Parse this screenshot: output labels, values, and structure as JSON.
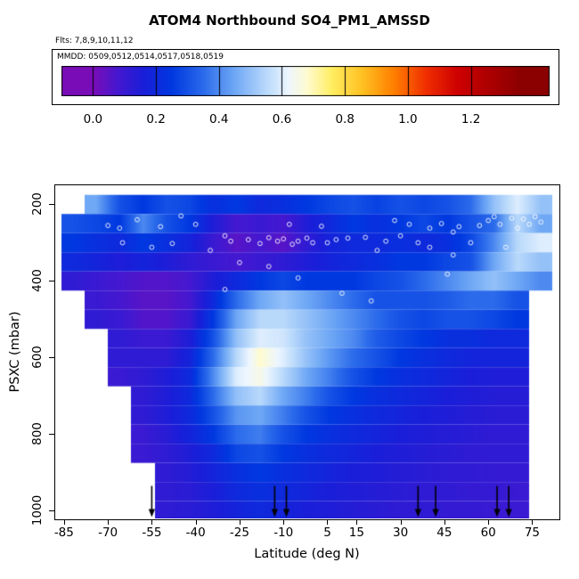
{
  "title": "ATOM4 Northbound SO4_PM1_AMSSD",
  "subtitle": "Flts: 7,8,9,10,11,12",
  "legend": {
    "label": "MMDD: 0509,0512,0514,0517,0518,0519",
    "ticks": [
      0.0,
      0.2,
      0.4,
      0.6,
      0.8,
      1.0,
      1.2
    ],
    "domain": [
      -0.1,
      1.45
    ]
  },
  "axes": {
    "x_label": "Latitude (deg N)",
    "y_label": "PSXC (mbar)",
    "x_ticks": [
      -85,
      -70,
      -55,
      -40,
      -25,
      -10,
      5,
      15,
      30,
      45,
      60,
      75
    ],
    "y_ticks": [
      200,
      400,
      600,
      800,
      1000
    ],
    "x_range": [
      -88,
      84
    ],
    "y_range": [
      150,
      1020
    ]
  },
  "chart_data": {
    "type": "heatmap",
    "title": "ATOM4 Northbound SO4_PM1_AMSSD",
    "xlabel": "Latitude (deg N)",
    "ylabel": "PSXC (mbar)",
    "x": [
      -82,
      -74,
      -66,
      -58,
      -50,
      -42,
      -34,
      -26,
      -18,
      -10,
      -2,
      6,
      14,
      22,
      30,
      38,
      46,
      54,
      62,
      70,
      78
    ],
    "y": [
      200,
      250,
      300,
      350,
      400,
      450,
      500,
      550,
      600,
      650,
      700,
      750,
      800,
      850,
      900,
      950,
      1000
    ],
    "cell_half_height_mbar": 25,
    "cell_half_width_deg": 4,
    "values": [
      [
        null,
        0.45,
        0.3,
        0.25,
        0.3,
        0.28,
        0.22,
        0.25,
        0.2,
        0.22,
        0.25,
        0.28,
        0.3,
        0.27,
        0.3,
        0.28,
        0.3,
        0.35,
        0.5,
        0.6,
        0.5
      ],
      [
        0.3,
        0.28,
        0.25,
        0.4,
        0.3,
        0.25,
        0.15,
        0.08,
        0.1,
        0.08,
        0.15,
        0.2,
        0.25,
        0.22,
        0.25,
        0.28,
        0.25,
        0.3,
        0.35,
        0.55,
        0.45
      ],
      [
        0.25,
        0.22,
        0.2,
        0.25,
        0.22,
        0.18,
        0.1,
        0.05,
        0.08,
        0.05,
        0.12,
        0.18,
        0.2,
        0.2,
        0.22,
        0.2,
        0.22,
        0.28,
        0.4,
        0.55,
        0.6
      ],
      [
        0.2,
        0.18,
        0.15,
        0.18,
        0.15,
        0.12,
        0.1,
        0.08,
        0.1,
        0.12,
        0.15,
        0.18,
        0.2,
        0.22,
        0.25,
        0.25,
        0.28,
        0.3,
        0.45,
        0.55,
        0.5
      ],
      [
        0.12,
        0.1,
        0.08,
        0.06,
        0.06,
        0.08,
        0.15,
        0.2,
        0.25,
        0.28,
        0.25,
        0.25,
        0.25,
        0.28,
        0.3,
        0.35,
        0.4,
        0.45,
        0.5,
        0.45,
        0.4
      ],
      [
        null,
        0.1,
        0.08,
        0.05,
        0.05,
        0.08,
        0.2,
        0.35,
        0.45,
        0.5,
        0.45,
        0.4,
        0.35,
        0.3,
        0.3,
        0.3,
        0.32,
        0.35,
        0.35,
        0.3,
        null
      ],
      [
        null,
        0.12,
        0.1,
        0.06,
        0.06,
        0.1,
        0.25,
        0.45,
        0.55,
        0.55,
        0.5,
        0.45,
        0.4,
        0.35,
        0.3,
        0.28,
        0.3,
        0.3,
        0.28,
        0.25,
        null
      ],
      [
        null,
        null,
        0.12,
        0.1,
        0.1,
        0.15,
        0.3,
        0.5,
        0.6,
        0.58,
        0.5,
        0.45,
        0.4,
        0.32,
        0.28,
        0.25,
        0.22,
        0.22,
        0.2,
        0.2,
        null
      ],
      [
        null,
        null,
        0.12,
        0.12,
        0.12,
        0.18,
        0.35,
        0.55,
        0.68,
        0.6,
        0.5,
        0.42,
        0.35,
        0.3,
        0.25,
        0.22,
        0.2,
        0.18,
        0.18,
        0.18,
        null
      ],
      [
        null,
        null,
        0.1,
        0.12,
        0.15,
        0.2,
        0.4,
        0.6,
        0.65,
        0.55,
        0.45,
        0.38,
        0.3,
        0.25,
        0.22,
        0.2,
        0.18,
        0.16,
        0.15,
        0.15,
        null
      ],
      [
        null,
        null,
        null,
        0.12,
        0.15,
        0.2,
        0.35,
        0.5,
        0.55,
        0.45,
        0.38,
        0.3,
        0.25,
        0.22,
        0.2,
        0.18,
        0.16,
        0.15,
        0.14,
        0.14,
        null
      ],
      [
        null,
        null,
        null,
        0.12,
        0.15,
        0.2,
        0.3,
        0.42,
        0.45,
        0.38,
        0.3,
        0.25,
        0.22,
        0.2,
        0.18,
        0.16,
        0.15,
        0.14,
        0.13,
        0.13,
        null
      ],
      [
        null,
        null,
        null,
        0.1,
        0.13,
        0.18,
        0.25,
        0.35,
        0.38,
        0.3,
        0.25,
        0.22,
        0.2,
        0.18,
        0.16,
        0.15,
        0.14,
        0.13,
        0.12,
        0.12,
        null
      ],
      [
        null,
        null,
        null,
        0.1,
        0.12,
        0.15,
        0.2,
        0.28,
        0.3,
        0.25,
        0.22,
        0.2,
        0.18,
        0.16,
        0.15,
        0.14,
        0.13,
        0.12,
        0.12,
        0.12,
        null
      ],
      [
        null,
        null,
        null,
        null,
        0.12,
        0.14,
        0.18,
        0.22,
        0.25,
        0.22,
        0.2,
        0.18,
        0.16,
        0.15,
        0.14,
        0.13,
        0.12,
        0.12,
        0.11,
        0.11,
        null
      ],
      [
        null,
        null,
        null,
        null,
        0.12,
        0.13,
        0.16,
        0.2,
        0.22,
        0.2,
        0.18,
        0.16,
        0.15,
        0.14,
        0.13,
        0.12,
        0.12,
        0.11,
        0.11,
        0.1,
        null
      ],
      [
        null,
        null,
        null,
        null,
        0.12,
        0.13,
        0.15,
        0.18,
        0.2,
        0.18,
        0.16,
        0.15,
        0.14,
        0.13,
        0.12,
        0.12,
        0.11,
        0.11,
        0.1,
        0.1,
        null
      ]
    ],
    "colormap": [
      [
        0.0,
        "#7A0CB8"
      ],
      [
        0.08,
        "#4418D0"
      ],
      [
        0.16,
        "#1A1ED8"
      ],
      [
        0.25,
        "#0038E0"
      ],
      [
        0.35,
        "#2B6BEB"
      ],
      [
        0.45,
        "#6FA8F5"
      ],
      [
        0.55,
        "#B9D9FB"
      ],
      [
        0.62,
        "#EDF6FF"
      ],
      [
        0.68,
        "#FFFBD0"
      ],
      [
        0.76,
        "#FFEE60"
      ],
      [
        0.86,
        "#FFBF20"
      ],
      [
        0.96,
        "#FF7C00"
      ],
      [
        1.06,
        "#EF2E00"
      ],
      [
        1.16,
        "#CE0000"
      ],
      [
        1.36,
        "#8B0000"
      ]
    ],
    "markers": [
      [
        -45,
        230
      ],
      [
        -52,
        258
      ],
      [
        -60,
        240
      ],
      [
        -66,
        262
      ],
      [
        -70,
        255
      ],
      [
        -40,
        252
      ],
      [
        -35,
        320
      ],
      [
        -55,
        312
      ],
      [
        -30,
        282
      ],
      [
        -28,
        296
      ],
      [
        -22,
        292
      ],
      [
        -18,
        302
      ],
      [
        -15,
        287
      ],
      [
        -12,
        296
      ],
      [
        -10,
        290
      ],
      [
        -7,
        304
      ],
      [
        -5,
        296
      ],
      [
        -2,
        288
      ],
      [
        0,
        300
      ],
      [
        3,
        257
      ],
      [
        5,
        300
      ],
      [
        8,
        292
      ],
      [
        12,
        288
      ],
      [
        18,
        286
      ],
      [
        22,
        320
      ],
      [
        25,
        296
      ],
      [
        28,
        242
      ],
      [
        30,
        282
      ],
      [
        33,
        252
      ],
      [
        36,
        300
      ],
      [
        40,
        262
      ],
      [
        40,
        312
      ],
      [
        44,
        250
      ],
      [
        48,
        272
      ],
      [
        48,
        332
      ],
      [
        50,
        258
      ],
      [
        54,
        300
      ],
      [
        57,
        255
      ],
      [
        60,
        242
      ],
      [
        62,
        232
      ],
      [
        64,
        252
      ],
      [
        66,
        312
      ],
      [
        68,
        236
      ],
      [
        70,
        262
      ],
      [
        72,
        238
      ],
      [
        74,
        252
      ],
      [
        76,
        232
      ],
      [
        78,
        246
      ],
      [
        -25,
        352
      ],
      [
        -15,
        362
      ],
      [
        -30,
        422
      ],
      [
        10,
        432
      ],
      [
        -5,
        392
      ],
      [
        20,
        452
      ],
      [
        46,
        382
      ],
      [
        -48,
        302
      ],
      [
        -65,
        300
      ],
      [
        -8,
        252
      ]
    ],
    "arrow_latitudes": [
      -55,
      -13,
      -9,
      36,
      42,
      63,
      67
    ]
  }
}
